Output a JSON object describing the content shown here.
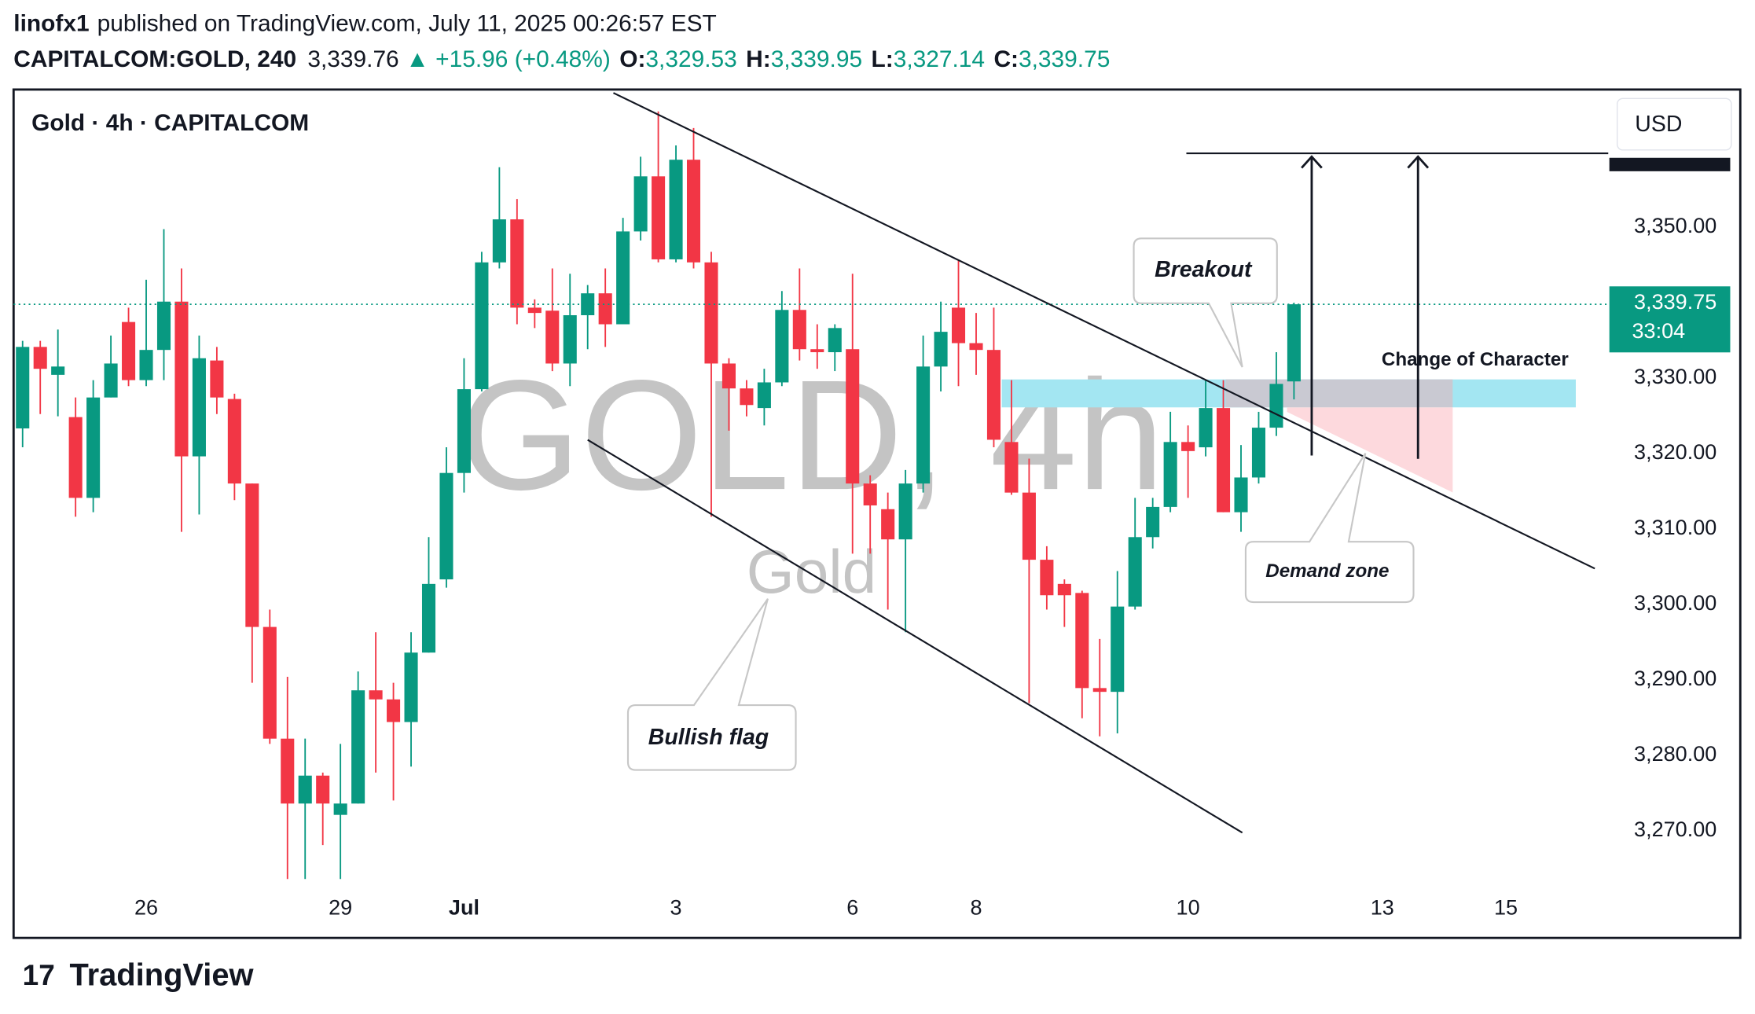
{
  "header": {
    "user": "linofx1",
    "published": "published on TradingView.com, July 11, 2025 00:26:57 EST",
    "symbol": "CAPITALCOM:GOLD, 240",
    "price": "3,339.76",
    "change": "▲ +15.96 (+0.48%)",
    "ohlc": [
      {
        "key": "O:",
        "value": "3,329.53"
      },
      {
        "key": "H:",
        "value": "3,339.95"
      },
      {
        "key": "L:",
        "value": "3,327.14"
      },
      {
        "key": "C:",
        "value": "3,339.75"
      }
    ]
  },
  "chart_data": {
    "type": "candlestick",
    "legend_title": "Gold · 4h · CAPITALCOM",
    "watermark": "GOLD, 4h",
    "watermark_sub": "Gold",
    "currency": "USD",
    "annotations": [
      "Breakout",
      "Change of Character",
      "Demand zone",
      "Bullish flag"
    ],
    "up_color": "#089981",
    "down_color": "#f23645",
    "x": [
      0,
      1,
      2,
      3,
      4,
      5,
      6,
      7,
      8,
      9,
      10,
      11,
      12,
      13,
      14,
      15,
      16,
      17,
      18,
      19,
      20,
      21,
      22,
      23,
      24,
      25,
      26,
      27,
      28,
      29,
      30,
      31,
      32,
      33,
      34,
      35,
      36,
      37,
      38,
      39,
      40,
      41,
      42,
      43,
      44,
      45,
      46,
      47,
      48,
      49,
      50,
      51,
      52,
      53,
      54,
      55,
      56,
      57,
      58,
      59,
      60,
      61,
      62,
      63,
      64,
      65,
      66,
      67,
      68,
      69,
      70,
      71,
      72
    ],
    "open": [
      3323.3,
      3334.1,
      3330.4,
      3324.8,
      3314.1,
      3327.4,
      3337.4,
      3329.7,
      3333.7,
      3340.1,
      3319.6,
      3332.3,
      3327.2,
      3316.0,
      3297.0,
      3282.2,
      3273.6,
      3277.3,
      3272.1,
      3273.6,
      3288.6,
      3287.4,
      3284.4,
      3293.6,
      3303.3,
      3317.4,
      3328.5,
      3345.3,
      3351.0,
      3339.3,
      3338.9,
      3331.9,
      3338.3,
      3341.2,
      3337.1,
      3349.4,
      3356.7,
      3345.7,
      3358.9,
      3345.3,
      3331.9,
      3328.6,
      3326.0,
      3329.4,
      3339.0,
      3333.8,
      3333.4,
      3333.8,
      3316.0,
      3312.6,
      3308.6,
      3316.0,
      3331.5,
      3339.3,
      3334.6,
      3333.7,
      3321.5,
      3314.8,
      3305.9,
      3302.7,
      3301.5,
      3288.9,
      3288.4,
      3299.7,
      3308.9,
      3312.9,
      3321.5,
      3320.8,
      3326.0,
      3312.2,
      3316.8,
      3323.4,
      3329.53
    ],
    "high": [
      3334.9,
      3334.9,
      3336.4,
      3327.4,
      3329.7,
      3335.6,
      3339.3,
      3343.0,
      3349.7,
      3344.5,
      3335.6,
      3334.1,
      3327.9,
      3316.0,
      3299.3,
      3290.4,
      3282.2,
      3277.7,
      3281.5,
      3291.1,
      3296.3,
      3289.6,
      3296.3,
      3308.9,
      3320.8,
      3332.6,
      3346.7,
      3357.9,
      3353.7,
      3340.4,
      3344.5,
      3343.8,
      3342.3,
      3344.5,
      3351.2,
      3359.3,
      3365.3,
      3360.8,
      3363.1,
      3346.7,
      3332.6,
      3329.7,
      3331.2,
      3341.5,
      3344.5,
      3337.1,
      3337.1,
      3343.8,
      3317.1,
      3314.8,
      3317.8,
      3335.6,
      3340.1,
      3345.5,
      3338.6,
      3339.3,
      3329.7,
      3319.3,
      3307.7,
      3303.3,
      3301.8,
      3295.4,
      3304.4,
      3314.1,
      3314.1,
      3325.5,
      3323.7,
      3329.7,
      3329.7,
      3321.1,
      3325.5,
      3333.4,
      3339.95
    ],
    "low": [
      3320.8,
      3325.2,
      3324.9,
      3311.6,
      3312.2,
      3327.4,
      3328.9,
      3328.9,
      3329.7,
      3309.6,
      3311.9,
      3325.2,
      3313.8,
      3289.6,
      3281.5,
      3263.6,
      3263.6,
      3268.1,
      3263.6,
      3273.6,
      3277.7,
      3274.0,
      3278.5,
      3293.6,
      3302.2,
      3314.8,
      3328.2,
      3344.5,
      3337.1,
      3336.6,
      3330.9,
      3328.9,
      3333.8,
      3334.1,
      3337.1,
      3348.2,
      3345.3,
      3345.3,
      3344.5,
      3311.6,
      3323.0,
      3324.9,
      3323.7,
      3328.9,
      3332.3,
      3331.2,
      3330.9,
      3306.7,
      3306.7,
      3299.3,
      3296.3,
      3314.8,
      3328.2,
      3328.9,
      3330.4,
      3320.8,
      3314.5,
      3286.9,
      3299.3,
      3297.0,
      3284.9,
      3282.5,
      3282.9,
      3299.3,
      3307.4,
      3312.2,
      3314.1,
      3319.6,
      3312.2,
      3309.6,
      3316.0,
      3322.3,
      3327.14
    ],
    "close": [
      3334.1,
      3331.2,
      3331.5,
      3314.1,
      3327.4,
      3331.9,
      3329.7,
      3333.7,
      3340.1,
      3319.6,
      3332.6,
      3327.4,
      3316.0,
      3297.0,
      3282.2,
      3273.6,
      3277.3,
      3273.6,
      3273.6,
      3288.6,
      3287.4,
      3284.4,
      3293.6,
      3302.7,
      3317.4,
      3328.5,
      3345.3,
      3351.0,
      3339.3,
      3338.6,
      3331.9,
      3338.3,
      3341.2,
      3337.1,
      3349.4,
      3356.7,
      3345.7,
      3358.9,
      3345.3,
      3331.9,
      3328.6,
      3326.4,
      3329.4,
      3339.0,
      3333.8,
      3333.4,
      3336.6,
      3316.0,
      3313.1,
      3308.6,
      3316.0,
      3331.5,
      3336.1,
      3334.6,
      3333.7,
      3321.8,
      3314.8,
      3305.9,
      3301.2,
      3301.2,
      3288.9,
      3288.4,
      3299.7,
      3308.9,
      3312.9,
      3321.5,
      3320.3,
      3326.0,
      3312.2,
      3316.8,
      3323.4,
      3329.2,
      3339.75
    ],
    "xlim": [
      -0.51,
      89.67
    ],
    "xticks": [
      {
        "value": 7,
        "label": "26"
      },
      {
        "value": 18,
        "label": "29"
      },
      {
        "value": 25,
        "label": "Jul"
      },
      {
        "value": 37,
        "label": "3"
      },
      {
        "value": 47,
        "label": "6"
      },
      {
        "value": 54,
        "label": "8"
      },
      {
        "value": 66,
        "label": "10"
      },
      {
        "value": 77,
        "label": "13"
      },
      {
        "value": 84,
        "label": "15"
      }
    ],
    "ylim": [
      3255.8,
      3368.2
    ],
    "yticks": [
      {
        "value": 3270,
        "label": "3,270.00"
      },
      {
        "value": 3280,
        "label": "3,280.00"
      },
      {
        "value": 3290,
        "label": "3,290.00"
      },
      {
        "value": 3300,
        "label": "3,300.00"
      },
      {
        "value": 3310,
        "label": "3,310.00"
      },
      {
        "value": 3320,
        "label": "3,320.00"
      },
      {
        "value": 3330,
        "label": "3,330.00"
      },
      {
        "value": 3340,
        "label": "3,340.00"
      },
      {
        "value": 3350,
        "label": "3,350.00"
      }
    ],
    "last_price": {
      "value": 3339.75,
      "label": "3,339.75"
    },
    "countdown": "33:04"
  },
  "footer": {
    "brand": "TradingView"
  }
}
